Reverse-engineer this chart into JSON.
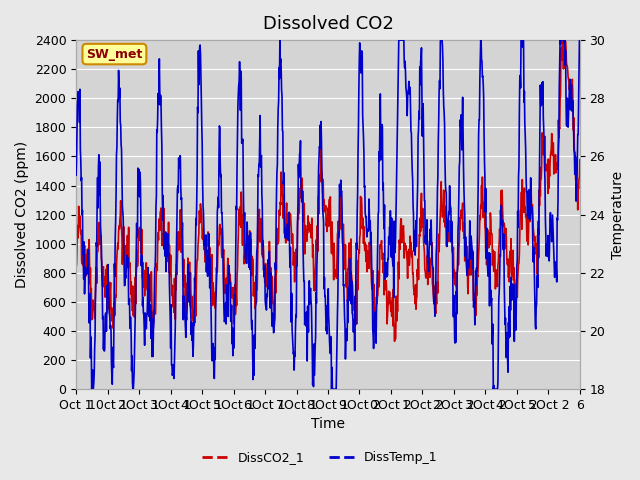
{
  "title": "Dissolved CO2",
  "xlabel": "Time",
  "ylabel_left": "Dissolved CO2 (ppm)",
  "ylabel_right": "Temperature",
  "legend_label_red": "DissCO2_1",
  "legend_label_blue": "DissTemp_1",
  "annotation_text": "SW_met",
  "xtick_labels": [
    "Oct 1",
    "10ct 1",
    "2Oct 1",
    "3Oct 1",
    "4Oct 1",
    "5Oct 1",
    "6Oct 1",
    "7Oct 1",
    "8Oct 1",
    "9Oct 2",
    "0Oct 2",
    "1Oct 2",
    "2Oct 2",
    "3Oct 2",
    "4Oct 2",
    "5Oct 2",
    "6"
  ],
  "ylim_left": [
    0,
    2400
  ],
  "ylim_right": [
    18,
    30
  ],
  "yticks_left": [
    0,
    200,
    400,
    600,
    800,
    1000,
    1200,
    1400,
    1600,
    1800,
    2000,
    2200,
    2400
  ],
  "yticks_right": [
    18,
    20,
    22,
    24,
    26,
    28,
    30
  ],
  "color_red": "#cc0000",
  "color_blue": "#0000cc",
  "background_color": "#e8e8e8",
  "plot_bg_color": "#d4d4d4",
  "grid_color": "#ffffff",
  "title_fontsize": 13,
  "axis_label_fontsize": 10,
  "tick_fontsize": 9,
  "n_days": 25,
  "pts_per_day": 48
}
